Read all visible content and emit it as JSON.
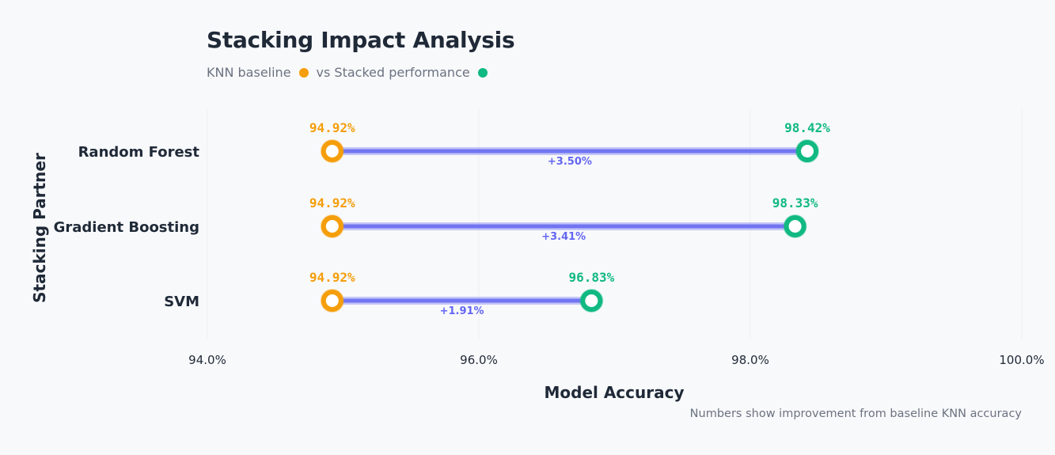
{
  "chart_data": {
    "type": "dumbbell",
    "title": "Stacking Impact Analysis",
    "subtitle": {
      "baseline_text": "KNN baseline",
      "stacked_text": "vs Stacked performance"
    },
    "xlabel": "Model Accuracy",
    "ylabel": "Stacking Partner",
    "xlim": [
      94,
      100
    ],
    "x_ticks": [
      94,
      96,
      98,
      100
    ],
    "x_tick_labels": [
      "94.0%",
      "96.0%",
      "98.0%",
      "100.0%"
    ],
    "grid": true,
    "categories": [
      "Random Forest",
      "Gradient Boosting",
      "SVM"
    ],
    "series": [
      {
        "name": "KNN baseline",
        "values": [
          94.92,
          94.92,
          94.92
        ]
      },
      {
        "name": "Stacked performance",
        "values": [
          98.42,
          98.33,
          96.83
        ]
      }
    ],
    "baseline_labels": [
      "94.92%",
      "94.92%",
      "94.92%"
    ],
    "stacked_labels": [
      "98.42%",
      "98.33%",
      "96.83%"
    ],
    "improvement_labels": [
      "+3.50%",
      "+3.41%",
      "+1.91%"
    ],
    "footnote": "Numbers show improvement from baseline KNN accuracy",
    "colors": {
      "baseline": "#f59e0b",
      "stacked": "#10b981",
      "connector": "#6366f1",
      "grid": "#eceef2",
      "text": "#1f2937",
      "muted": "#6b7280"
    }
  }
}
